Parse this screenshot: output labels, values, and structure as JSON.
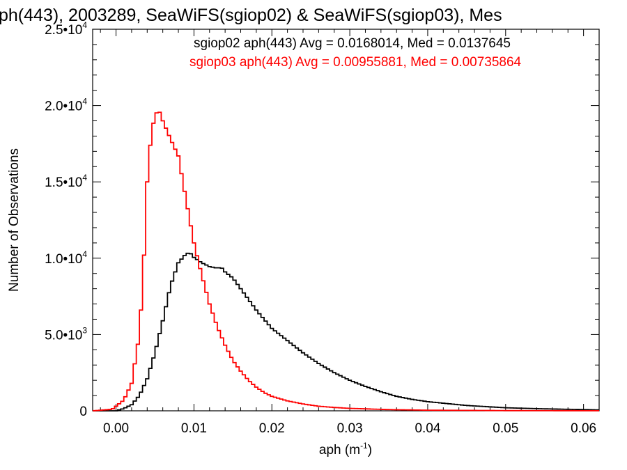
{
  "chart_data": {
    "type": "line",
    "title": "ph(443), 2003289, SeaWiFS(sgiop02) & SeaWiFS(sgiop03), Mes",
    "xlabel": "aph (m",
    "xlabel_sup": "-1",
    "xlabel_tail": ")",
    "ylabel": "Number of Observations",
    "xlim": [
      -0.003,
      0.062
    ],
    "ylim": [
      0,
      25000
    ],
    "xticks": [
      {
        "value": 0.0,
        "label": "0.00"
      },
      {
        "value": 0.01,
        "label": "0.01"
      },
      {
        "value": 0.02,
        "label": "0.02"
      },
      {
        "value": 0.03,
        "label": "0.03"
      },
      {
        "value": 0.04,
        "label": "0.04"
      },
      {
        "value": 0.05,
        "label": "0.05"
      },
      {
        "value": 0.06,
        "label": "0.06"
      }
    ],
    "yticks": [
      {
        "value": 0,
        "mant": "0",
        "exp": ""
      },
      {
        "value": 5000,
        "mant": "5.0•10",
        "exp": "3"
      },
      {
        "value": 10000,
        "mant": "1.0•10",
        "exp": "4"
      },
      {
        "value": 15000,
        "mant": "1.5•10",
        "exp": "4"
      },
      {
        "value": 20000,
        "mant": "2.0•10",
        "exp": "4"
      },
      {
        "value": 25000,
        "mant": "2.5•10",
        "exp": "4"
      }
    ],
    "legend": [
      {
        "text": "sgiop02 aph(443) Avg = 0.0168014, Med = 0.0137645",
        "color": "#000000"
      },
      {
        "text": "sgiop03 aph(443) Avg = 0.00955881, Med = 0.00735864",
        "color": "#ff0000"
      }
    ],
    "series": [
      {
        "color": "#000000",
        "points": [
          [
            -0.003,
            0
          ],
          [
            0.0,
            0
          ],
          [
            0.001,
            150
          ],
          [
            0.002,
            400
          ],
          [
            0.003,
            1000
          ],
          [
            0.004,
            2100
          ],
          [
            0.005,
            3800
          ],
          [
            0.006,
            5900
          ],
          [
            0.007,
            8200
          ],
          [
            0.008,
            9700
          ],
          [
            0.009,
            10300
          ],
          [
            0.0095,
            10350
          ],
          [
            0.01,
            10050
          ],
          [
            0.011,
            9700
          ],
          [
            0.012,
            9450
          ],
          [
            0.013,
            9350
          ],
          [
            0.0135,
            9400
          ],
          [
            0.014,
            9100
          ],
          [
            0.015,
            8700
          ],
          [
            0.016,
            8000
          ],
          [
            0.017,
            7300
          ],
          [
            0.018,
            6600
          ],
          [
            0.019,
            6000
          ],
          [
            0.02,
            5400
          ],
          [
            0.022,
            4600
          ],
          [
            0.024,
            3800
          ],
          [
            0.026,
            3100
          ],
          [
            0.028,
            2500
          ],
          [
            0.03,
            2000
          ],
          [
            0.032,
            1600
          ],
          [
            0.034,
            1250
          ],
          [
            0.036,
            950
          ],
          [
            0.038,
            750
          ],
          [
            0.04,
            600
          ],
          [
            0.045,
            350
          ],
          [
            0.05,
            200
          ],
          [
            0.055,
            130
          ],
          [
            0.06,
            80
          ],
          [
            0.062,
            60
          ]
        ]
      },
      {
        "color": "#ff0000",
        "points": [
          [
            -0.003,
            0
          ],
          [
            -0.0005,
            100
          ],
          [
            0.0,
            300
          ],
          [
            0.001,
            700
          ],
          [
            0.002,
            1800
          ],
          [
            0.003,
            5000
          ],
          [
            0.0035,
            9000
          ],
          [
            0.004,
            15000
          ],
          [
            0.0045,
            18000
          ],
          [
            0.005,
            19400
          ],
          [
            0.0055,
            19700
          ],
          [
            0.006,
            19000
          ],
          [
            0.007,
            17800
          ],
          [
            0.008,
            16700
          ],
          [
            0.009,
            13800
          ],
          [
            0.01,
            11000
          ],
          [
            0.011,
            8900
          ],
          [
            0.012,
            7000
          ],
          [
            0.013,
            5500
          ],
          [
            0.014,
            4300
          ],
          [
            0.015,
            3300
          ],
          [
            0.016,
            2600
          ],
          [
            0.017,
            2000
          ],
          [
            0.018,
            1550
          ],
          [
            0.019,
            1200
          ],
          [
            0.02,
            950
          ],
          [
            0.022,
            650
          ],
          [
            0.024,
            450
          ],
          [
            0.026,
            300
          ],
          [
            0.028,
            220
          ],
          [
            0.03,
            160
          ],
          [
            0.035,
            80
          ],
          [
            0.04,
            40
          ],
          [
            0.05,
            15
          ],
          [
            0.062,
            5
          ]
        ]
      }
    ]
  }
}
